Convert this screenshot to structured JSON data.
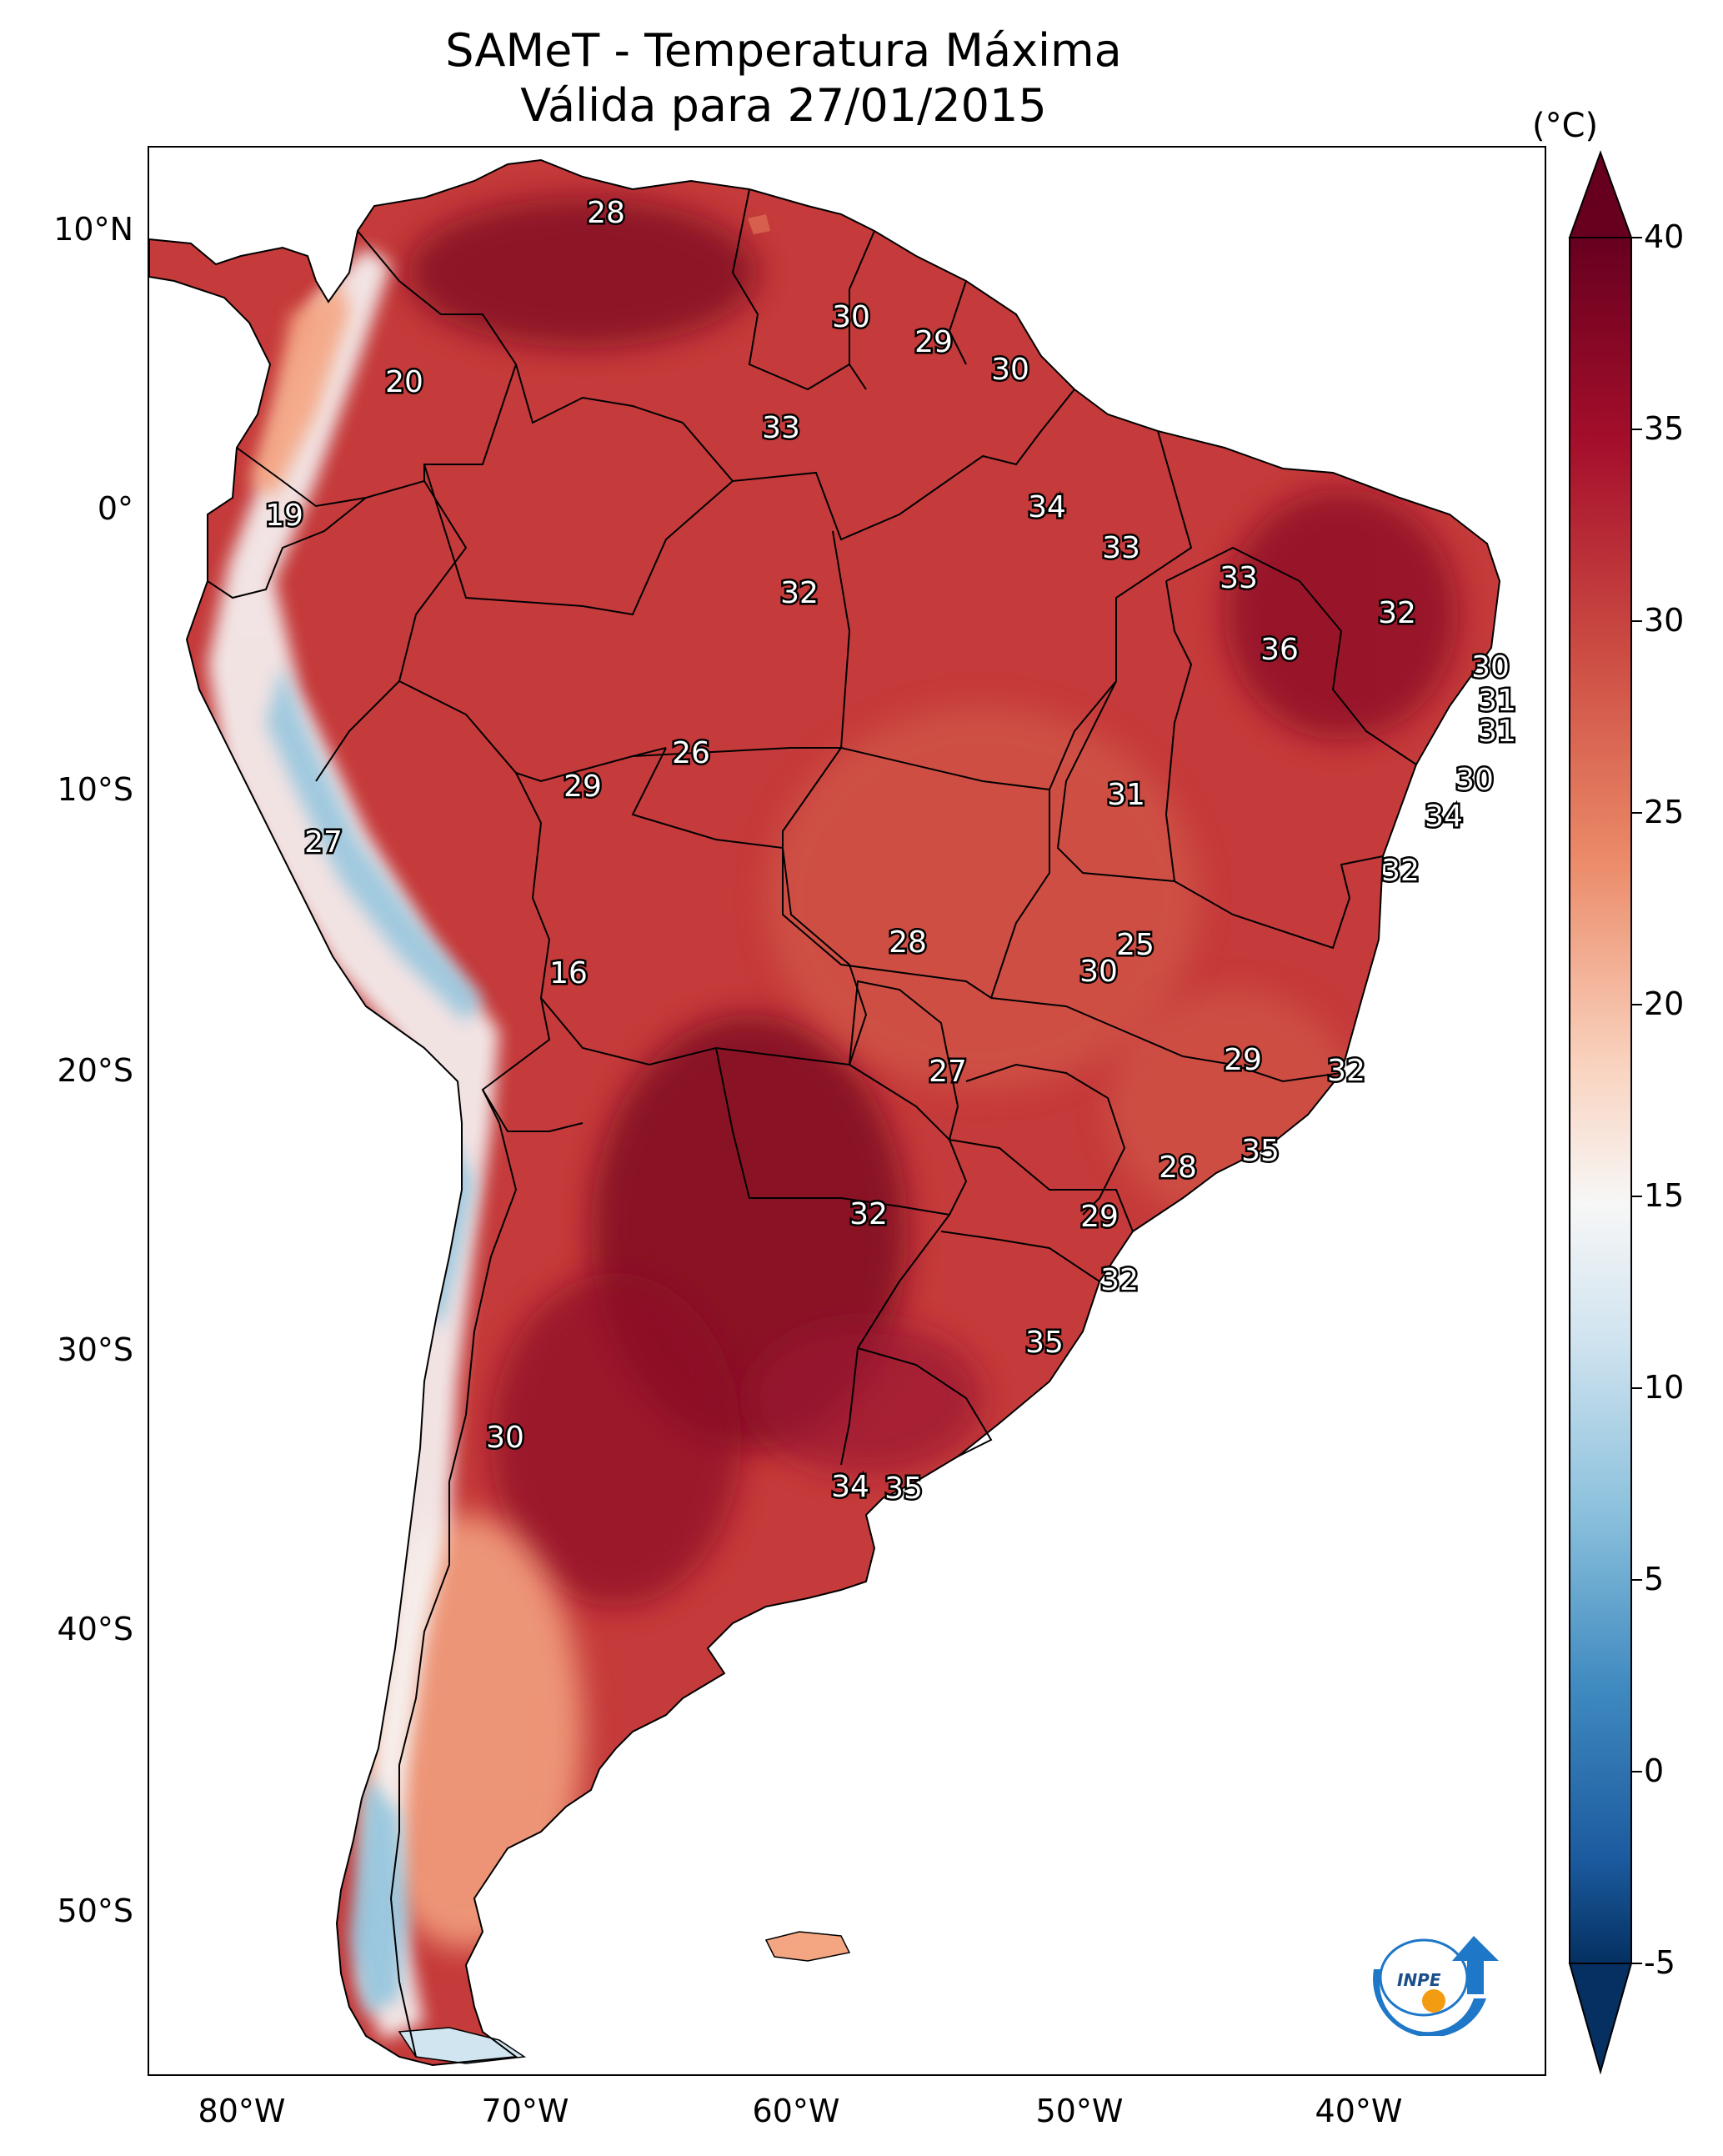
{
  "title": {
    "line1": "SAMeT - Temperatura Máxima",
    "line2": "Válida para 27/01/2015"
  },
  "map": {
    "longitude_labels": [
      "80°W",
      "70°W",
      "60°W",
      "50°W",
      "40°W"
    ],
    "latitude_labels": [
      "10°N",
      "0°",
      "10°S",
      "20°S",
      "30°S",
      "40°S",
      "50°S"
    ],
    "contour_labels": [
      "28",
      "30",
      "29",
      "30",
      "20",
      "33",
      "34",
      "19",
      "33",
      "32",
      "33",
      "32",
      "36",
      "30",
      "31",
      "31",
      "26",
      "29",
      "30",
      "31",
      "27",
      "34",
      "32",
      "16",
      "28",
      "25",
      "30",
      "29",
      "32",
      "27",
      "35",
      "28",
      "32",
      "29",
      "32",
      "35",
      "30",
      "34",
      "35"
    ],
    "colors": {
      "very_hot": "#67001f",
      "hot": "#b2182b",
      "warm": "#d6604d",
      "mild": "#f4a582",
      "neutral": "#f7f7f7",
      "cool": "#d1e5f0",
      "cold": "#92c5de",
      "very_cold": "#2166ac",
      "coldest": "#053061",
      "border": "#000000"
    }
  },
  "colorbar": {
    "unit": "(°C)",
    "ticks": [
      "40",
      "35",
      "30",
      "25",
      "20",
      "15",
      "10",
      "5",
      "0",
      "-5"
    ],
    "range": [
      -5,
      40
    ]
  },
  "logo": {
    "text": "INPE",
    "icon": "inpe-logo-icon"
  }
}
